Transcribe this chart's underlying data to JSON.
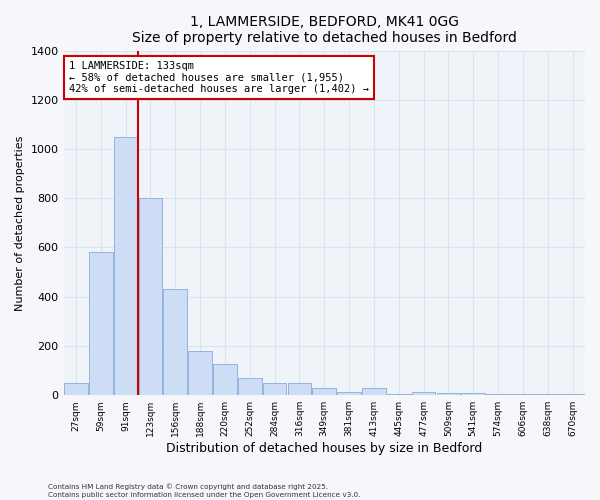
{
  "title": "1, LAMMERSIDE, BEDFORD, MK41 0GG",
  "subtitle": "Size of property relative to detached houses in Bedford",
  "xlabel": "Distribution of detached houses by size in Bedford",
  "ylabel": "Number of detached properties",
  "bar_labels": [
    "27sqm",
    "59sqm",
    "91sqm",
    "123sqm",
    "156sqm",
    "188sqm",
    "220sqm",
    "252sqm",
    "284sqm",
    "316sqm",
    "349sqm",
    "381sqm",
    "413sqm",
    "445sqm",
    "477sqm",
    "509sqm",
    "541sqm",
    "574sqm",
    "606sqm",
    "638sqm",
    "670sqm"
  ],
  "bar_values": [
    50,
    580,
    1050,
    800,
    430,
    180,
    125,
    70,
    50,
    50,
    30,
    15,
    30,
    5,
    15,
    10,
    10,
    5,
    5,
    5,
    5
  ],
  "bar_color": "#ccddf5",
  "bar_edge_color": "#88aadd",
  "vline_color": "#cc0000",
  "annotation_title": "1 LAMMERSIDE: 133sqm",
  "annotation_line1": "← 58% of detached houses are smaller (1,955)",
  "annotation_line2": "42% of semi-detached houses are larger (1,402) →",
  "annotation_box_color": "#cc0000",
  "ylim": [
    0,
    1400
  ],
  "yticks": [
    0,
    200,
    400,
    600,
    800,
    1000,
    1200,
    1400
  ],
  "footnote1": "Contains HM Land Registry data © Crown copyright and database right 2025.",
  "footnote2": "Contains public sector information licensed under the Open Government Licence v3.0.",
  "bg_color": "#f5f7fa",
  "plot_bg_color": "#f0f4f8",
  "grid_color": "#d8e4f0"
}
